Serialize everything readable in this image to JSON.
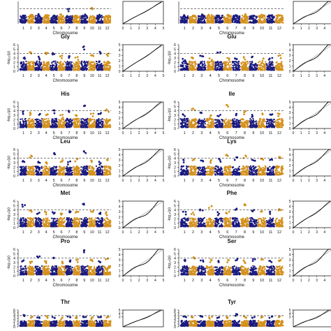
{
  "colors": {
    "odd_chromosome": "#1a1a80",
    "even_chromosome": "#d4911c",
    "threshold_line": "#333333",
    "qq_line": "#000000"
  },
  "figure": {
    "x_label": "Chromosome",
    "y_label": "-log₁₀(p)"
  },
  "chart_data": [
    {
      "type": "scatter",
      "title": "",
      "kind": "manhattan",
      "xlabel": "Chromosome",
      "ylabel": "",
      "chromosomes": [
        "1",
        "2",
        "3",
        "4",
        "5",
        "6",
        "7",
        "8",
        "9",
        "10",
        "11",
        "12"
      ],
      "x_tick_labels": [
        "1",
        "2",
        "3",
        "4",
        "5",
        "6",
        "7",
        "8",
        "9",
        "10",
        "11",
        "12"
      ],
      "ylim": [
        0,
        6
      ],
      "threshold": 4.0,
      "peaks": [
        2.2,
        2.4,
        2.6,
        2.3,
        2.2,
        2.5,
        4.0,
        2.2,
        2.5,
        4.3,
        2.4,
        2.2
      ]
    },
    {
      "type": "line",
      "title": "",
      "kind": "qq",
      "ylim": [
        0,
        5
      ],
      "x_ticks": [
        "0",
        "1",
        "2",
        "3",
        "4",
        "5"
      ],
      "deviation": 0.1
    },
    {
      "type": "scatter",
      "title": "",
      "kind": "manhattan",
      "xlabel": "Chromosome",
      "ylabel": "",
      "chromosomes": [
        "1",
        "2",
        "3",
        "4",
        "5",
        "6",
        "7",
        "8",
        "9",
        "10",
        "11",
        "12"
      ],
      "x_tick_labels": [
        "1",
        "2",
        "3",
        "4",
        "5",
        "6",
        "7",
        "8",
        "9",
        "10",
        "11",
        "12"
      ],
      "ylim": [
        0,
        6
      ],
      "threshold": 4.0,
      "peaks": [
        2.3,
        2.2,
        2.5,
        2.4,
        2.2,
        2.4,
        2.3,
        2.6,
        2.2,
        2.4,
        2.3,
        2.3
      ]
    },
    {
      "type": "line",
      "title": "",
      "kind": "qq",
      "ylim": [
        0,
        5
      ],
      "x_ticks": [
        "0",
        "1",
        "2",
        "3",
        "4",
        "5"
      ],
      "deviation": 0.4
    },
    {
      "type": "scatter",
      "title": "Gly",
      "kind": "manhattan",
      "xlabel": "Chromosome",
      "ylabel": "-log₁₀(p)",
      "chromosomes": [
        "1",
        "2",
        "3",
        "4",
        "5",
        "6",
        "7",
        "8",
        "9",
        "10",
        "11",
        "12"
      ],
      "x_tick_labels": [
        "1",
        "2",
        "3",
        "4",
        "5",
        "6",
        "7",
        "8",
        "9",
        "10",
        "11",
        "12"
      ],
      "y_ticks": [
        "0",
        "1",
        "2",
        "3",
        "4",
        "5",
        "6"
      ],
      "ylim": [
        0,
        6
      ],
      "threshold": 4.0,
      "peaks": [
        3.1,
        4.3,
        3.3,
        4.2,
        4.1,
        3.5,
        3.4,
        3.2,
        5.6,
        3.6,
        4.4,
        4.0
      ]
    },
    {
      "type": "line",
      "title": "",
      "kind": "qq",
      "y_ticks": [
        "0",
        "1",
        "2",
        "3",
        "4",
        "5"
      ],
      "x_ticks": [
        "0",
        "1",
        "2",
        "3",
        "4",
        "5"
      ],
      "ylim": [
        0,
        5
      ],
      "deviation": 0.1
    },
    {
      "type": "scatter",
      "title": "Glu",
      "kind": "manhattan",
      "xlabel": "Chromosome",
      "ylabel": "-log₁₀(p)",
      "chromosomes": [
        "1",
        "2",
        "3",
        "4",
        "5",
        "6",
        "7",
        "8",
        "9",
        "10",
        "11",
        "12"
      ],
      "x_tick_labels": [
        "1",
        "2",
        "3",
        "4",
        "5",
        "6",
        "7",
        "8",
        "9",
        "10",
        "11",
        "12"
      ],
      "y_ticks": [
        "0",
        "1",
        "2",
        "3",
        "4",
        "5",
        "6"
      ],
      "ylim": [
        0,
        6
      ],
      "threshold": 4.0,
      "peaks": [
        2.8,
        3.1,
        3.5,
        2.9,
        4.3,
        3.0,
        2.9,
        3.2,
        3.3,
        2.9,
        3.0,
        3.6
      ]
    },
    {
      "type": "line",
      "title": "",
      "kind": "qq",
      "y_ticks": [
        "0",
        "1",
        "2",
        "3",
        "4",
        "5"
      ],
      "x_ticks": [
        "0",
        "1",
        "2",
        "3",
        "4",
        "5"
      ],
      "ylim": [
        0,
        5
      ],
      "deviation": 0.4
    },
    {
      "type": "scatter",
      "title": "His",
      "kind": "manhattan",
      "xlabel": "Chromosome",
      "ylabel": "-log₁₀(p)",
      "chromosomes": [
        "1",
        "2",
        "3",
        "4",
        "5",
        "6",
        "7",
        "8",
        "9",
        "10",
        "11",
        "12"
      ],
      "x_tick_labels": [
        "1",
        "2",
        "3",
        "4",
        "5",
        "6",
        "7",
        "8",
        "9",
        "10",
        "11",
        "12"
      ],
      "y_ticks": [
        "0",
        "1",
        "2",
        "3",
        "4",
        "5",
        "6"
      ],
      "ylim": [
        0,
        6
      ],
      "threshold": 4.0,
      "peaks": [
        3.9,
        3.6,
        3.3,
        3.2,
        4.1,
        3.1,
        4.0,
        3.0,
        5.2,
        3.4,
        3.5,
        4.3
      ]
    },
    {
      "type": "line",
      "title": "",
      "kind": "qq",
      "y_ticks": [
        "0",
        "1",
        "2",
        "3",
        "4",
        "5"
      ],
      "x_ticks": [
        "0",
        "1",
        "2",
        "3",
        "4",
        "5"
      ],
      "ylim": [
        0,
        5
      ],
      "deviation": 0.2
    },
    {
      "type": "scatter",
      "title": "Ile",
      "kind": "manhattan",
      "xlabel": "Chromosome",
      "ylabel": "-log₁₀(p)",
      "chromosomes": [
        "1",
        "2",
        "3",
        "4",
        "5",
        "6",
        "7",
        "8",
        "9",
        "10",
        "11",
        "12"
      ],
      "x_tick_labels": [
        "1",
        "2",
        "3",
        "4",
        "5",
        "6",
        "7",
        "8",
        "9",
        "10",
        "11",
        "12"
      ],
      "y_ticks": [
        "0",
        "1",
        "2",
        "3",
        "4",
        "5",
        "6"
      ],
      "ylim": [
        0,
        6
      ],
      "threshold": 4.0,
      "peaks": [
        3.2,
        4.5,
        3.6,
        3.0,
        3.1,
        5.3,
        3.3,
        3.9,
        3.1,
        3.4,
        3.2,
        3.4
      ]
    },
    {
      "type": "line",
      "title": "",
      "kind": "qq",
      "y_ticks": [
        "0",
        "1",
        "2",
        "3",
        "4",
        "5"
      ],
      "x_ticks": [
        "0",
        "1",
        "2",
        "3",
        "4",
        "5"
      ],
      "ylim": [
        0,
        5
      ],
      "deviation": 0.4
    },
    {
      "type": "scatter",
      "title": "Leu",
      "kind": "manhattan",
      "xlabel": "Chromosome",
      "ylabel": "-log₁₀(p)",
      "chromosomes": [
        "1",
        "2",
        "3",
        "4",
        "5",
        "6",
        "7",
        "8",
        "9",
        "10",
        "11",
        "12"
      ],
      "x_tick_labels": [
        "1",
        "2",
        "3",
        "4",
        "5",
        "6",
        "7",
        "8",
        "9",
        "10",
        "11",
        "12"
      ],
      "y_ticks": [
        "0",
        "1",
        "2",
        "3",
        "4",
        "5",
        "6"
      ],
      "ylim": [
        0,
        6
      ],
      "threshold": 4.0,
      "peaks": [
        3.4,
        4.6,
        3.2,
        3.1,
        5.2,
        3.6,
        3.3,
        3.9,
        5.6,
        3.5,
        3.2,
        3.7
      ]
    },
    {
      "type": "line",
      "title": "",
      "kind": "qq",
      "y_ticks": [
        "0",
        "1",
        "2",
        "3",
        "4",
        "5"
      ],
      "x_ticks": [
        "0",
        "1",
        "2",
        "3",
        "4",
        "5"
      ],
      "ylim": [
        0,
        5
      ],
      "deviation": 0.3
    },
    {
      "type": "scatter",
      "title": "Lys",
      "kind": "manhattan",
      "xlabel": "Chromosome",
      "ylabel": "-log₁₀(p)",
      "chromosomes": [
        "1",
        "2",
        "3",
        "4",
        "5",
        "6",
        "7",
        "8",
        "9",
        "10",
        "11",
        "12"
      ],
      "x_tick_labels": [
        "1",
        "2",
        "3",
        "4",
        "5",
        "6",
        "7",
        "8",
        "9",
        "10",
        "11",
        "12"
      ],
      "y_ticks": [
        "0",
        "1",
        "2",
        "3",
        "4",
        "5",
        "6"
      ],
      "ylim": [
        0,
        6
      ],
      "threshold": 4.0,
      "peaks": [
        3.7,
        3.8,
        3.5,
        3.6,
        3.9,
        4.8,
        4.2,
        4.6,
        3.7,
        3.9,
        3.8,
        4.3
      ]
    },
    {
      "type": "line",
      "title": "",
      "kind": "qq",
      "y_ticks": [
        "0",
        "1",
        "2",
        "3",
        "4",
        "5"
      ],
      "x_ticks": [
        "0",
        "1",
        "2",
        "3",
        "4",
        "5"
      ],
      "ylim": [
        0,
        5
      ],
      "deviation": 0.3
    },
    {
      "type": "scatter",
      "title": "Met",
      "kind": "manhattan",
      "xlabel": "Chromosome",
      "ylabel": "-log₁₀(p)",
      "chromosomes": [
        "1",
        "2",
        "3",
        "4",
        "5",
        "6",
        "7",
        "8",
        "9",
        "10",
        "11",
        "12"
      ],
      "x_tick_labels": [
        "1",
        "2",
        "3",
        "4",
        "5",
        "6",
        "7",
        "8",
        "9",
        "10",
        "11",
        "12"
      ],
      "y_ticks": [
        "0",
        "1",
        "2",
        "3",
        "4",
        "5",
        "6"
      ],
      "ylim": [
        0,
        6
      ],
      "threshold": 4.0,
      "peaks": [
        5.2,
        3.9,
        3.4,
        3.6,
        3.5,
        3.2,
        3.7,
        3.6,
        5.4,
        3.8,
        3.4,
        3.5
      ]
    },
    {
      "type": "line",
      "title": "",
      "kind": "qq",
      "y_ticks": [
        "0",
        "1",
        "2",
        "3",
        "4",
        "5"
      ],
      "x_ticks": [
        "0",
        "1",
        "2",
        "3",
        "4",
        "5"
      ],
      "ylim": [
        0,
        5
      ],
      "deviation": 0.5
    },
    {
      "type": "scatter",
      "title": "Phe",
      "kind": "manhattan",
      "xlabel": "Chromosome",
      "ylabel": "-log₁₀(p)",
      "chromosomes": [
        "1",
        "2",
        "3",
        "4",
        "5",
        "6",
        "7",
        "8",
        "9",
        "10",
        "11",
        "12"
      ],
      "x_tick_labels": [
        "1",
        "2",
        "3",
        "4",
        "5",
        "6",
        "7",
        "8",
        "9",
        "10",
        "11",
        "12"
      ],
      "y_ticks": [
        "0",
        "1",
        "2",
        "3",
        "4",
        "5",
        "6"
      ],
      "ylim": [
        0,
        6
      ],
      "threshold": 4.0,
      "peaks": [
        3.6,
        3.4,
        4.1,
        4.9,
        3.5,
        3.6,
        4.3,
        5.3,
        4.0,
        3.7,
        3.6,
        4.2
      ]
    },
    {
      "type": "line",
      "title": "",
      "kind": "qq",
      "y_ticks": [
        "0",
        "1",
        "2",
        "3",
        "4",
        "5"
      ],
      "x_ticks": [
        "0",
        "1",
        "2",
        "3",
        "4",
        "5"
      ],
      "ylim": [
        0,
        5
      ],
      "deviation": 0.2
    },
    {
      "type": "scatter",
      "title": "Pro",
      "kind": "manhattan",
      "xlabel": "Chromosome",
      "ylabel": "-log₁₀(p)",
      "chromosomes": [
        "1",
        "2",
        "3",
        "4",
        "5",
        "6",
        "7",
        "8",
        "9",
        "10",
        "11",
        "12"
      ],
      "x_tick_labels": [
        "1",
        "2",
        "3",
        "4",
        "5",
        "6",
        "7",
        "8",
        "9",
        "10",
        "11",
        "12"
      ],
      "y_ticks": [
        "0",
        "1",
        "2",
        "3",
        "4",
        "5",
        "6"
      ],
      "ylim": [
        0,
        6
      ],
      "threshold": 4.0,
      "peaks": [
        3.5,
        3.2,
        4.4,
        3.3,
        4.1,
        3.2,
        3.5,
        3.7,
        5.8,
        3.6,
        3.3,
        3.9
      ]
    },
    {
      "type": "line",
      "title": "",
      "kind": "qq",
      "y_ticks": [
        "0",
        "1",
        "2",
        "3",
        "4",
        "5"
      ],
      "x_ticks": [
        "0",
        "1",
        "2",
        "3",
        "4",
        "5"
      ],
      "ylim": [
        0,
        5
      ],
      "deviation": 0.5
    },
    {
      "type": "scatter",
      "title": "Ser",
      "kind": "manhattan",
      "xlabel": "Chromosome",
      "ylabel": "-log₁₀(p)",
      "chromosomes": [
        "1",
        "2",
        "3",
        "4",
        "5",
        "6",
        "7",
        "8",
        "9",
        "10",
        "11",
        "12"
      ],
      "x_tick_labels": [
        "1",
        "2",
        "3",
        "4",
        "5",
        "6",
        "7",
        "8",
        "9",
        "10",
        "11",
        "12"
      ],
      "y_ticks": [
        "0",
        "1",
        "2",
        "3",
        "4",
        "5",
        "6"
      ],
      "ylim": [
        0,
        6
      ],
      "threshold": 4.0,
      "peaks": [
        3.6,
        4.2,
        3.5,
        3.7,
        3.4,
        3.6,
        3.9,
        3.5,
        3.8,
        3.7,
        3.4,
        3.6
      ]
    },
    {
      "type": "line",
      "title": "",
      "kind": "qq",
      "y_ticks": [
        "0",
        "1",
        "2",
        "3",
        "4",
        "5"
      ],
      "x_ticks": [
        "0",
        "1",
        "2",
        "3",
        "4",
        "5"
      ],
      "ylim": [
        0,
        5
      ],
      "deviation": 0.4
    },
    {
      "type": "scatter",
      "title": "Thr",
      "kind": "manhattan",
      "xlabel": "",
      "ylabel": "",
      "chromosomes": [
        "1",
        "2",
        "3",
        "4",
        "5",
        "6",
        "7",
        "8",
        "9",
        "10",
        "11",
        "12"
      ],
      "x_tick_labels": [],
      "y_ticks": [
        "0",
        "1",
        "2",
        "3",
        "4",
        "5",
        "6"
      ],
      "ylim": [
        0,
        6
      ],
      "threshold": 4.0,
      "peaks": [
        4.2,
        3.6,
        3.4,
        3.8,
        3.5,
        3.3,
        3.7,
        3.5,
        3.6,
        3.4,
        3.5,
        3.6
      ]
    },
    {
      "type": "line",
      "title": "",
      "kind": "qq",
      "y_ticks": [
        "3",
        "4",
        "5"
      ],
      "x_ticks": [],
      "ylim": [
        0,
        5
      ],
      "deviation": 0.2
    },
    {
      "type": "scatter",
      "title": "Tyr",
      "kind": "manhattan",
      "xlabel": "",
      "ylabel": "",
      "chromosomes": [
        "1",
        "2",
        "3",
        "4",
        "5",
        "6",
        "7",
        "8",
        "9",
        "10",
        "11",
        "12"
      ],
      "x_tick_labels": [],
      "y_ticks": [
        "0",
        "1",
        "2",
        "3",
        "4",
        "5",
        "6"
      ],
      "ylim": [
        0,
        6
      ],
      "threshold": 4.0,
      "peaks": [
        3.7,
        3.5,
        3.9,
        3.6,
        3.4,
        3.5,
        4.6,
        3.8,
        3.5,
        3.6,
        3.7,
        3.8
      ]
    },
    {
      "type": "line",
      "title": "",
      "kind": "qq",
      "y_ticks": [
        "3",
        "4",
        "5"
      ],
      "x_ticks": [],
      "ylim": [
        0,
        5
      ],
      "deviation": 0.3
    }
  ]
}
